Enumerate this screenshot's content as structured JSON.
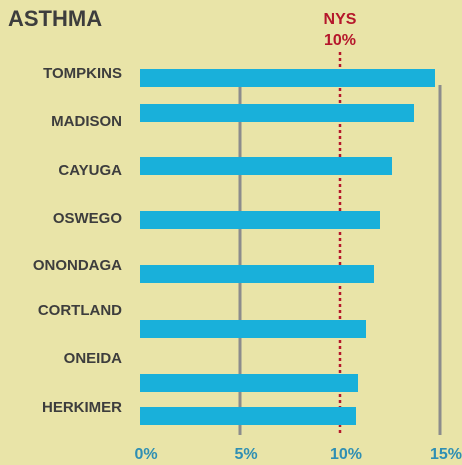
{
  "chart_data": {
    "type": "bar",
    "orientation": "horizontal",
    "title": "ASTHMA",
    "categories": [
      "TOMPKINS",
      "MADISON",
      "CAYUGA",
      "OSWEGO",
      "ONONDAGA",
      "CORTLAND",
      "ONEIDA",
      "HERKIMER"
    ],
    "values": [
      14.75,
      13.7,
      12.6,
      12.0,
      11.7,
      11.3,
      10.9,
      10.8
    ],
    "color": "#19b0da",
    "xlim": [
      0,
      15
    ],
    "xticks": [
      {
        "value": 0,
        "label": "0%"
      },
      {
        "value": 5,
        "label": "5%"
      },
      {
        "value": 10,
        "label": "10%"
      },
      {
        "value": 15,
        "label": "15%"
      }
    ],
    "grid": true,
    "reference": {
      "text": "NYS",
      "value": 10,
      "label": "10%",
      "color": "#b5172b"
    }
  }
}
